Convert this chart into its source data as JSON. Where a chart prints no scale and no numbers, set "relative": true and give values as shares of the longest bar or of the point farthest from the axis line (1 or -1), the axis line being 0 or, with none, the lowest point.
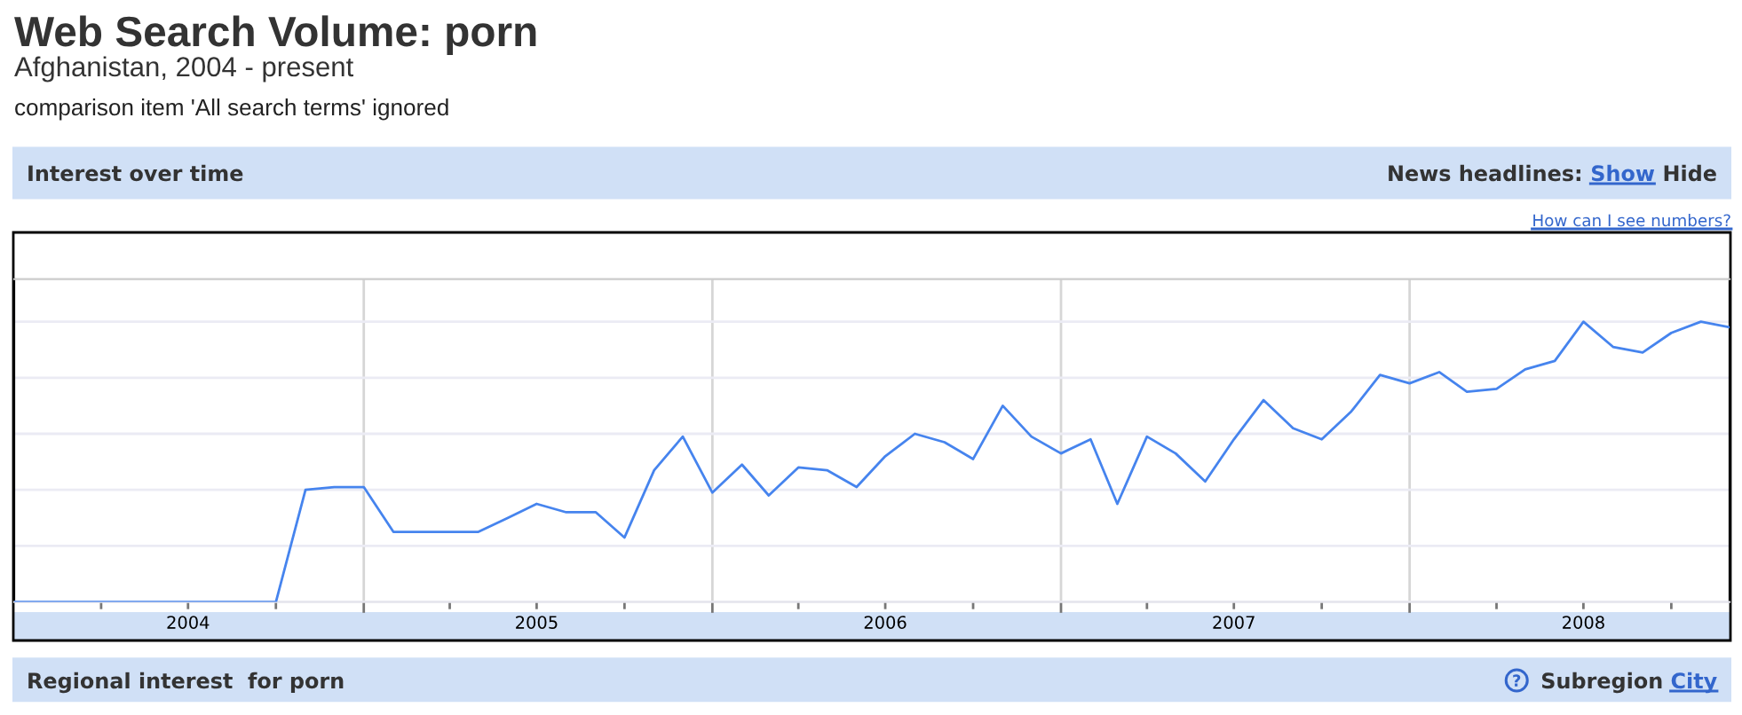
{
  "chart_data": {
    "type": "line",
    "title": "Web Search Volume: porn",
    "subtitle": "Afghanistan, 2004 - present",
    "annotations": [
      "comparison item 'All search terms' ignored",
      "Interest over time",
      "News headlines:",
      "Show",
      "Hide",
      "How can I see numbers?",
      "Regional interest  for porn",
      "Subregion",
      "City"
    ],
    "relative": true,
    "x": [
      "2004-01",
      "2004-02",
      "2004-03",
      "2004-04",
      "2004-05",
      "2004-06",
      "2004-07",
      "2004-08",
      "2004-09",
      "2004-10",
      "2004-11",
      "2004-12",
      "2005-01",
      "2005-02",
      "2005-03",
      "2005-04",
      "2005-05",
      "2005-06",
      "2005-07",
      "2005-08",
      "2005-09",
      "2005-10",
      "2005-11",
      "2005-12",
      "2006-01",
      "2006-02",
      "2006-03",
      "2006-04",
      "2006-05",
      "2006-06",
      "2006-07",
      "2006-08",
      "2006-09",
      "2006-10",
      "2006-11",
      "2006-12",
      "2007-01",
      "2007-02",
      "2007-03",
      "2007-04",
      "2007-05",
      "2007-06",
      "2007-07",
      "2007-08",
      "2007-09",
      "2007-10",
      "2007-11",
      "2007-12",
      "2008-01",
      "2008-02",
      "2008-03",
      "2008-04",
      "2008-05",
      "2008-06",
      "2008-07",
      "2008-08",
      "2008-09",
      "2008-10",
      "2008-11",
      "2008-12"
    ],
    "series": [
      {
        "color": "#4684ee",
        "values": [
          0,
          0,
          0,
          0,
          0,
          0,
          0,
          0,
          0,
          0,
          0.4,
          0.41,
          0.41,
          0.25,
          0.25,
          0.25,
          0.25,
          0.3,
          0.35,
          0.32,
          0.32,
          0.23,
          0.47,
          0.59,
          0.39,
          0.49,
          0.38,
          0.48,
          0.47,
          0.41,
          0.52,
          0.6,
          0.57,
          0.51,
          0.7,
          0.59,
          0.53,
          0.58,
          0.35,
          0.59,
          0.53,
          0.43,
          0.58,
          0.72,
          0.62,
          0.58,
          0.68,
          0.81,
          0.78,
          0.82,
          0.75,
          0.76,
          0.83,
          0.86,
          1,
          0.91,
          0.89,
          0.96,
          1,
          0.98
        ]
      }
    ],
    "xlim": [
      "2004-01",
      "2008-12"
    ],
    "xticks": [
      {
        "value": "2004-04",
        "label": null
      },
      {
        "value": "2004-07",
        "label": "2004"
      },
      {
        "value": "2004-10",
        "label": null
      },
      {
        "value": "2005",
        "label": null
      },
      {
        "value": "2005-04",
        "label": null
      },
      {
        "value": "2005-07",
        "label": "2005"
      },
      {
        "value": "2005-10",
        "label": null
      },
      {
        "value": "2006",
        "label": null
      },
      {
        "value": "2006-04",
        "label": null
      },
      {
        "value": "2006-07",
        "label": "2006"
      },
      {
        "value": "2006-10",
        "label": null
      },
      {
        "value": "2007",
        "label": null
      },
      {
        "value": "2007-04",
        "label": null
      },
      {
        "value": "2007-07",
        "label": "2007"
      },
      {
        "value": "2007-10",
        "label": null
      },
      {
        "value": "2008",
        "label": null
      },
      {
        "value": "2008-04",
        "label": null
      },
      {
        "value": "2008-07",
        "label": "2008"
      },
      {
        "value": "2008-10",
        "label": null
      }
    ],
    "grid": true,
    "tick_labels": "x"
  }
}
